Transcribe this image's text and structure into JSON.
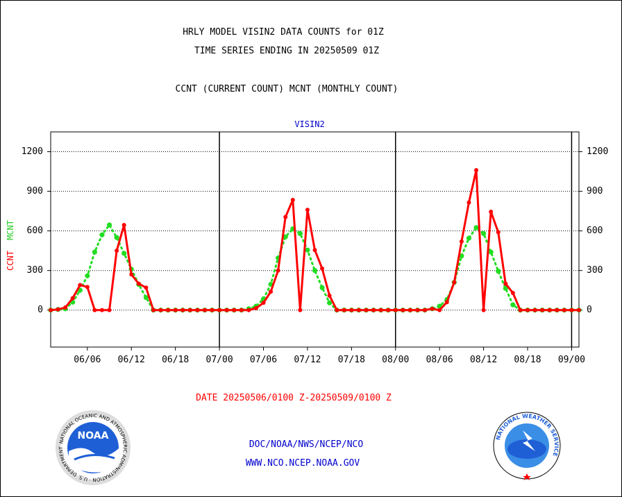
{
  "header": {
    "title_line1": "HRLY MODEL VISIN2 DATA COUNTS for 01Z",
    "title_line2": "TIME SERIES ENDING IN 20250509 01Z",
    "subtitle": "CCNT (CURRENT COUNT) MCNT (MONTHLY COUNT)"
  },
  "footer": {
    "date_range": "DATE 20250506/0100 Z-20250509/0100 Z",
    "link1": "DOC/NOAA/NWS/NCEP/NCO",
    "link2": "WWW.NCO.NCEP.NOAA.GOV",
    "noaa_logo_text": "NOAA",
    "noaa_ring_text": "NATIONAL OCEANIC AND ATMOSPHERIC ADMINISTRATION · U.S. DEPARTMENT OF COMMERCE",
    "nws_ring_text": "NATIONAL WEATHER SERVICE"
  },
  "colors": {
    "ccnt": "#ff0000",
    "mcnt": "#22dd22",
    "footer_text": "#0000cc",
    "date_text": "#ff0000",
    "plot_title": "#0000cc"
  },
  "chart_data": {
    "type": "line",
    "title": "VISIN2",
    "ylabel_ccnt": "CCNT",
    "ylabel_mcnt": "MCNT",
    "ylim": [
      -280,
      1350
    ],
    "yticks": [
      0,
      300,
      600,
      900,
      1200
    ],
    "grid": "horizontal dotted",
    "x_tick_labels": [
      "06/06",
      "06/12",
      "06/18",
      "07/00",
      "07/06",
      "07/12",
      "07/18",
      "08/00",
      "08/06",
      "08/12",
      "08/18",
      "09/00"
    ],
    "x_tick_hours": [
      5,
      11,
      17,
      23,
      29,
      35,
      41,
      47,
      53,
      59,
      65,
      71
    ],
    "day_separators_hours": [
      23,
      47,
      71
    ],
    "x_range_hours": [
      0,
      72
    ],
    "series": [
      {
        "name": "CCNT",
        "x": [
          0,
          1,
          2,
          3,
          4,
          5,
          6,
          7,
          8,
          9,
          10,
          11,
          12,
          13,
          14,
          15,
          16,
          17,
          18,
          19,
          20,
          21,
          22,
          23,
          24,
          25,
          26,
          27,
          28,
          29,
          30,
          31,
          32,
          33,
          34,
          35,
          36,
          37,
          38,
          39,
          40,
          41,
          42,
          43,
          44,
          45,
          46,
          47,
          48,
          49,
          50,
          51,
          52,
          53,
          54,
          55,
          56,
          57,
          58,
          59,
          60,
          61,
          62,
          63,
          64,
          65,
          66,
          67,
          68,
          69,
          70,
          71,
          72
        ],
        "values": [
          0,
          5,
          20,
          90,
          190,
          175,
          0,
          0,
          0,
          450,
          645,
          270,
          200,
          170,
          0,
          0,
          0,
          0,
          0,
          0,
          0,
          0,
          0,
          0,
          0,
          0,
          0,
          0,
          15,
          55,
          140,
          300,
          705,
          835,
          0,
          760,
          455,
          315,
          110,
          0,
          0,
          0,
          0,
          0,
          0,
          0,
          0,
          0,
          0,
          0,
          0,
          0,
          10,
          0,
          60,
          210,
          520,
          815,
          1060,
          0,
          745,
          590,
          200,
          130,
          0,
          0,
          0,
          0,
          0,
          0,
          0,
          0,
          0
        ]
      },
      {
        "name": "MCNT",
        "x": [
          0,
          1,
          2,
          3,
          4,
          5,
          6,
          7,
          8,
          9,
          10,
          11,
          12,
          13,
          14,
          15,
          16,
          17,
          18,
          19,
          20,
          21,
          22,
          23,
          24,
          25,
          26,
          27,
          28,
          29,
          30,
          31,
          32,
          33,
          34,
          35,
          36,
          37,
          38,
          39,
          40,
          41,
          42,
          43,
          44,
          45,
          46,
          47,
          48,
          49,
          50,
          51,
          52,
          53,
          54,
          55,
          56,
          57,
          58,
          59,
          60,
          61,
          62,
          63,
          64,
          65,
          66,
          67,
          68,
          69,
          70,
          71,
          72
        ],
        "values": [
          0,
          5,
          10,
          60,
          150,
          260,
          440,
          570,
          645,
          550,
          430,
          310,
          195,
          95,
          0,
          0,
          0,
          0,
          0,
          0,
          0,
          0,
          0,
          0,
          0,
          0,
          0,
          10,
          30,
          85,
          195,
          395,
          555,
          615,
          580,
          455,
          300,
          170,
          55,
          0,
          0,
          0,
          0,
          0,
          0,
          0,
          0,
          0,
          0,
          0,
          0,
          0,
          10,
          30,
          80,
          210,
          410,
          545,
          625,
          580,
          440,
          295,
          165,
          40,
          0,
          0,
          0,
          0,
          0,
          0,
          0,
          0,
          0
        ]
      }
    ]
  }
}
